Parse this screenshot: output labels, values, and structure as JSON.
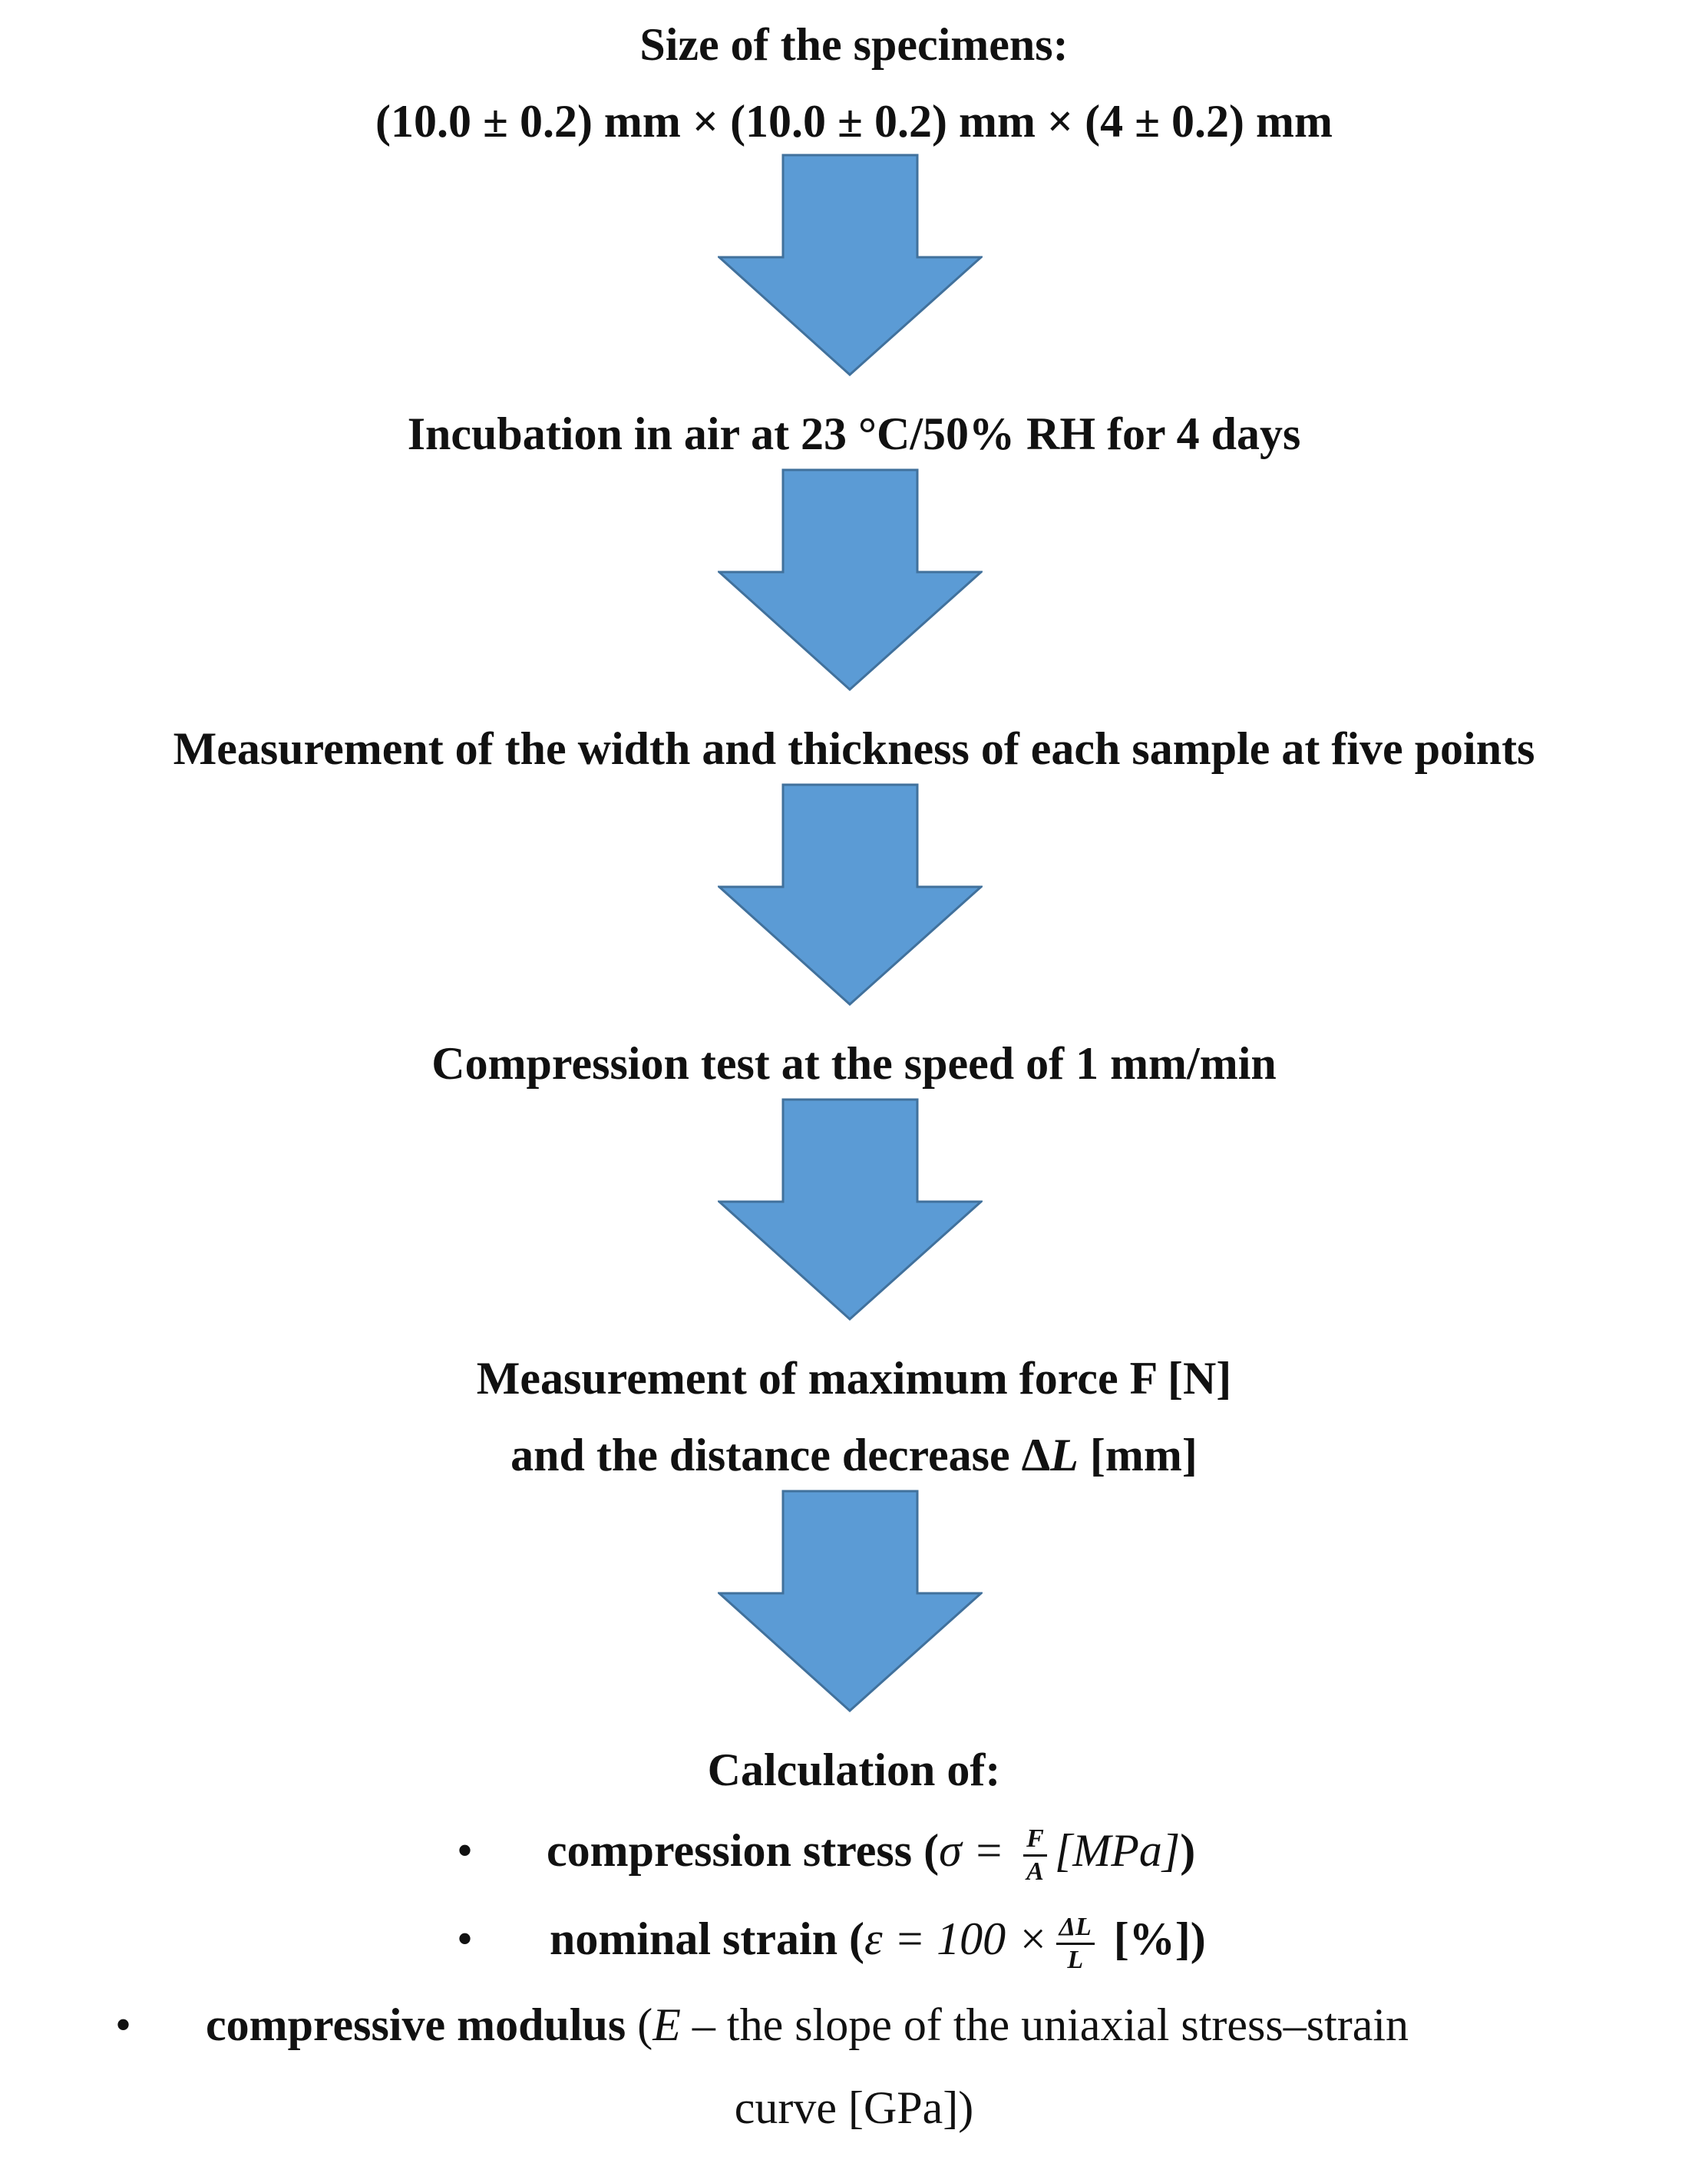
{
  "steps": {
    "size_title": "Size of the specimens:",
    "size_value": "(10.0 ± 0.2) mm × (10.0 ± 0.2) mm × (4 ± 0.2) mm",
    "incubation": "Incubation in air at 23 °C/50% RH for 4 days",
    "measurement_dims": "Measurement of the width and thickness of each sample at five points",
    "compression_test": "Compression test at the speed of 1 mm/min",
    "measurement_force_1": "Measurement of maximum force F [N]",
    "measurement_force_2a": "and the distance decrease Δ",
    "measurement_force_2b": "L",
    "measurement_force_2c": " [mm]",
    "calculation_title": "Calculation of:"
  },
  "bullets": {
    "stress_label": "compression stress (",
    "stress_math": "σ = ",
    "stress_num": "F",
    "stress_den": "A",
    "stress_unit": "[MPa]",
    "stress_close": ")",
    "strain_label": "nominal strain (",
    "strain_math": "ε = 100 ×",
    "strain_num": "ΔL",
    "strain_den": "L",
    "strain_unit": " [%])",
    "modulus_label": "compressive modulus",
    "modulus_open": " (",
    "modulus_var": "E",
    "modulus_desc": " – the slope of the uniaxial stress–strain",
    "modulus_desc2": "curve [GPa])",
    "bullet_char": "•"
  },
  "colors": {
    "arrow_fill": "#5b9bd5",
    "arrow_stroke": "#41719c",
    "text": "#111111"
  },
  "icons": [
    "down-arrow-icon",
    "bullet-icon"
  ]
}
